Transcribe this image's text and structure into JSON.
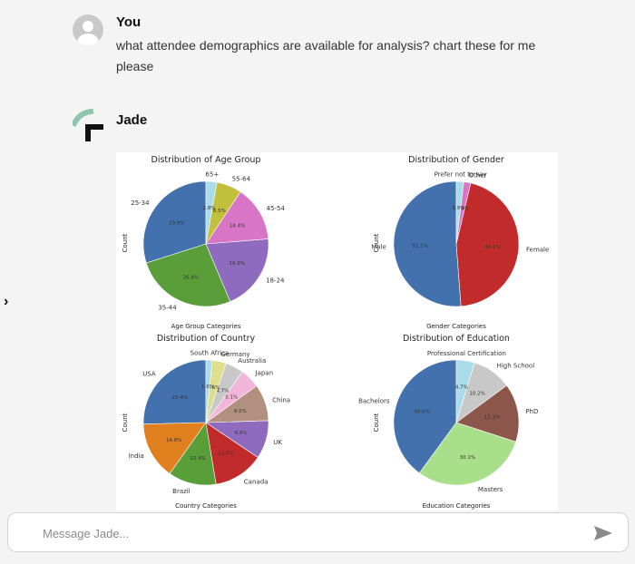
{
  "messages": {
    "user": {
      "sender": "You",
      "text": "what attendee demographics are available for analysis? chart these for me please"
    },
    "bot": {
      "sender": "Jade"
    }
  },
  "composer": {
    "placeholder": "Message Jade..."
  },
  "colors": {
    "tab_blue": "#4271ae",
    "tab_orange": "#e1801e",
    "tab_green": "#5a9e3a",
    "tab_red": "#c22b2b",
    "tab_purple": "#8f6bbf",
    "tab_brown": "#b2907f",
    "tab_pink": "#d975c6",
    "tab_gray": "#c8c8c8",
    "tab_olive": "#c2bf3d",
    "tab_cyan": "#a9dbe9",
    "light_green": "#a9de8a",
    "brown_dark": "#8c564b"
  },
  "chart_data": [
    {
      "type": "pie",
      "title": "Distribution of Age Group",
      "xlabel": "Age Group Categories",
      "ylabel": "Count",
      "categories": [
        "25-34",
        "35-44",
        "18-24",
        "45-54",
        "55-64",
        "65+"
      ],
      "values": [
        29.9,
        26.4,
        19.9,
        14.4,
        6.5,
        2.8
      ],
      "pct_labels": [
        "29.9%",
        "26.4%",
        "19.9%",
        "14.4%",
        "6.5%",
        "2.8%"
      ],
      "colors": [
        "#4271ae",
        "#5a9e3a",
        "#8f6bbf",
        "#d975c6",
        "#c2bf3d",
        "#a9dbe9"
      ]
    },
    {
      "type": "pie",
      "title": "Distribution of Gender",
      "xlabel": "Gender Categories",
      "ylabel": "Count",
      "categories": [
        "Male",
        "Female",
        "Other",
        "Prefer not to say"
      ],
      "values": [
        51.2,
        45.1,
        1.8,
        1.9
      ],
      "pct_labels": [
        "51.2%",
        "45.1%",
        "1.8%",
        "1.9%"
      ],
      "colors": [
        "#4271ae",
        "#c22b2b",
        "#d975c6",
        "#a9dbe9"
      ]
    },
    {
      "type": "pie",
      "title": "Distribution of Country",
      "xlabel": "Country Categories",
      "ylabel": "Count",
      "categories": [
        "USA",
        "India",
        "Brazil",
        "Canada",
        "UK",
        "China",
        "Japan",
        "Australia",
        "Germany",
        "South Africa"
      ],
      "values": [
        25.4,
        14.8,
        12.4,
        13.0,
        9.9,
        9.5,
        5.1,
        4.7,
        3.6,
        1.6
      ],
      "pct_labels": [
        "25.4%",
        "14.8%",
        "12.4%",
        "13.0%",
        "9.9%",
        "9.5%",
        "5.1%",
        "4.7%",
        "3.6%",
        "1.6%"
      ],
      "colors": [
        "#4271ae",
        "#e1801e",
        "#5a9e3a",
        "#c22b2b",
        "#8f6bbf",
        "#b2907f",
        "#f2b6da",
        "#c8c8c8",
        "#dede8c",
        "#a9dbe9"
      ]
    },
    {
      "type": "pie",
      "title": "Distribution of Education",
      "xlabel": "Education Categories",
      "ylabel": "Count",
      "categories": [
        "Bachelors",
        "Masters",
        "PhD",
        "High School",
        "Professional Certification"
      ],
      "values": [
        40.0,
        30.1,
        15.1,
        10.2,
        4.7
      ],
      "pct_labels": [
        "40.0%",
        "30.1%",
        "15.1%",
        "10.2%",
        "4.7%"
      ],
      "colors": [
        "#4271ae",
        "#a9de8a",
        "#8c564b",
        "#c8c8c8",
        "#a9dbe9"
      ]
    }
  ]
}
